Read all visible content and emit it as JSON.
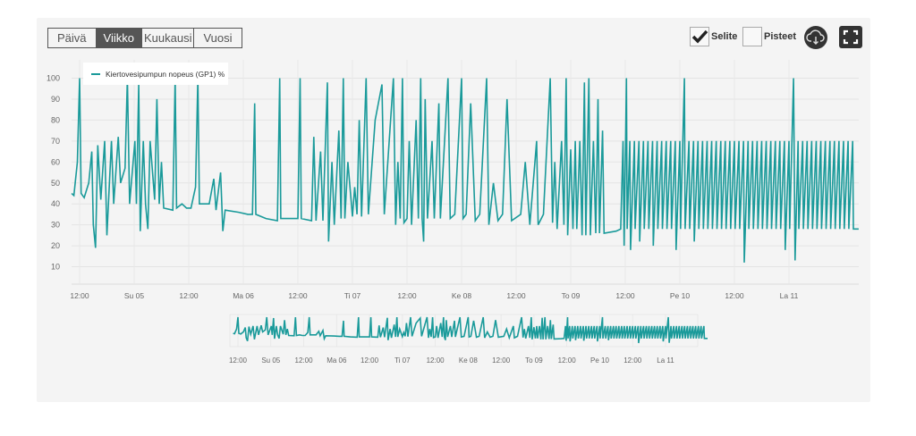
{
  "toolbar": {
    "ranges": [
      "Päivä",
      "Viikko",
      "Kuukausi",
      "Vuosi"
    ],
    "active_range": "Viikko",
    "legend_toggle": {
      "label": "Selite",
      "checked": true
    },
    "points_toggle": {
      "label": "Pisteet",
      "checked": false
    },
    "download_icon": "cloud-download-icon",
    "fullscreen_icon": "fullscreen-icon"
  },
  "chart_data": {
    "type": "line",
    "title": "",
    "xlabel": "",
    "ylabel": "",
    "ylim": [
      0,
      105
    ],
    "y_ticks": [
      10,
      20,
      30,
      40,
      50,
      60,
      70,
      80,
      90,
      100
    ],
    "x_ticks": [
      "12:00",
      "Su 05",
      "12:00",
      "Ma 06",
      "12:00",
      "Ti 07",
      "12:00",
      "Ke 08",
      "12:00",
      "To 09",
      "12:00",
      "Pe 10",
      "12:00",
      "La 11"
    ],
    "x_tick_times": [
      "04 12:00",
      "05 00:00",
      "05 12:00",
      "06 00:00",
      "06 12:00",
      "07 00:00",
      "07 12:00",
      "08 00:00",
      "08 12:00",
      "09 00:00",
      "09 12:00",
      "10 00:00",
      "10 12:00",
      "11 00:00"
    ],
    "grid": true,
    "legend_position": "top-left",
    "color": "#1a9a9a",
    "series": [
      {
        "name": "Kiertovesipumpun nopeus (GP1) %",
        "points": [
          [
            "04 10:15",
            45
          ],
          [
            "04 10:45",
            44
          ],
          [
            "04 11:30",
            60
          ],
          [
            "04 12:00",
            100
          ],
          [
            "04 12:20",
            45
          ],
          [
            "04 13:00",
            43
          ],
          [
            "04 14:00",
            50
          ],
          [
            "04 14:40",
            65
          ],
          [
            "04 15:00",
            30
          ],
          [
            "04 15:30",
            19
          ],
          [
            "04 16:00",
            68
          ],
          [
            "04 16:40",
            42
          ],
          [
            "04 17:30",
            70
          ],
          [
            "04 18:00",
            25
          ],
          [
            "04 19:00",
            70
          ],
          [
            "04 19:30",
            40
          ],
          [
            "04 20:30",
            72
          ],
          [
            "04 21:00",
            50
          ],
          [
            "04 22:00",
            57
          ],
          [
            "04 22:30",
            100
          ],
          [
            "04 23:00",
            40
          ],
          [
            "05 00:10",
            70
          ],
          [
            "05 00:30",
            40
          ],
          [
            "05 01:00",
            97
          ],
          [
            "05 01:20",
            27
          ],
          [
            "05 02:00",
            70
          ],
          [
            "05 02:30",
            40
          ],
          [
            "05 03:00",
            28
          ],
          [
            "05 03:30",
            70
          ],
          [
            "05 04:30",
            42
          ],
          [
            "05 05:00",
            90
          ],
          [
            "05 05:30",
            40
          ],
          [
            "05 06:00",
            60
          ],
          [
            "05 06:30",
            38
          ],
          [
            "05 08:30",
            37
          ],
          [
            "05 09:00",
            100
          ],
          [
            "05 09:20",
            38
          ],
          [
            "05 10:30",
            40
          ],
          [
            "05 11:30",
            38
          ],
          [
            "05 12:30",
            38
          ],
          [
            "05 13:30",
            48
          ],
          [
            "05 14:00",
            100
          ],
          [
            "05 14:20",
            40
          ],
          [
            "05 16:30",
            40
          ],
          [
            "05 17:30",
            52
          ],
          [
            "05 18:00",
            37
          ],
          [
            "05 19:00",
            55
          ],
          [
            "05 19:30",
            27
          ],
          [
            "05 20:00",
            37
          ],
          [
            "05 23:00",
            36
          ],
          [
            "06 01:00",
            35
          ],
          [
            "06 02:00",
            35
          ],
          [
            "06 02:30",
            88
          ],
          [
            "06 02:45",
            35
          ],
          [
            "06 05:00",
            33
          ],
          [
            "06 07:30",
            32
          ],
          [
            "06 08:00",
            100
          ],
          [
            "06 08:15",
            33
          ],
          [
            "06 12:00",
            33
          ],
          [
            "06 12:30",
            100
          ],
          [
            "06 12:45",
            33
          ],
          [
            "06 15:00",
            32
          ],
          [
            "06 15:30",
            72
          ],
          [
            "06 16:00",
            32
          ],
          [
            "06 17:00",
            65
          ],
          [
            "06 17:30",
            32
          ],
          [
            "06 18:30",
            98
          ],
          [
            "06 18:45",
            22
          ],
          [
            "06 19:30",
            60
          ],
          [
            "06 20:00",
            30
          ],
          [
            "06 21:00",
            75
          ],
          [
            "06 21:30",
            33
          ],
          [
            "06 22:00",
            100
          ],
          [
            "06 22:20",
            33
          ],
          [
            "06 23:00",
            60
          ],
          [
            "07 00:00",
            34
          ],
          [
            "07 00:30",
            48
          ],
          [
            "07 01:00",
            35
          ],
          [
            "07 01:30",
            80
          ],
          [
            "07 02:00",
            34
          ],
          [
            "07 03:00",
            100
          ],
          [
            "07 03:30",
            35
          ],
          [
            "07 05:00",
            80
          ],
          [
            "07 06:30",
            97
          ],
          [
            "07 07:00",
            35
          ],
          [
            "07 09:00",
            100
          ],
          [
            "07 09:30",
            30
          ],
          [
            "07 10:00",
            60
          ],
          [
            "07 10:30",
            33
          ],
          [
            "07 11:00",
            100
          ],
          [
            "07 11:20",
            31
          ],
          [
            "07 12:00",
            33
          ],
          [
            "07 12:30",
            70
          ],
          [
            "07 13:00",
            30
          ],
          [
            "07 14:00",
            80
          ],
          [
            "07 14:30",
            33
          ],
          [
            "07 15:00",
            100
          ],
          [
            "07 15:20",
            33
          ],
          [
            "07 15:40",
            22
          ],
          [
            "07 16:00",
            90
          ],
          [
            "07 16:30",
            33
          ],
          [
            "07 17:30",
            70
          ],
          [
            "07 18:00",
            33
          ],
          [
            "07 19:00",
            88
          ],
          [
            "07 19:20",
            33
          ],
          [
            "07 21:00",
            100
          ],
          [
            "07 21:30",
            33
          ],
          [
            "07 22:30",
            35
          ],
          [
            "08 00:00",
            100
          ],
          [
            "08 00:20",
            33
          ],
          [
            "08 01:00",
            35
          ],
          [
            "08 02:00",
            88
          ],
          [
            "08 03:00",
            32
          ],
          [
            "08 04:00",
            35
          ],
          [
            "08 05:30",
            100
          ],
          [
            "08 06:00",
            30
          ],
          [
            "08 07:00",
            50
          ],
          [
            "08 08:00",
            32
          ],
          [
            "08 09:00",
            35
          ],
          [
            "08 10:00",
            90
          ],
          [
            "08 11:00",
            32
          ],
          [
            "08 13:00",
            35
          ],
          [
            "08 14:00",
            60
          ],
          [
            "08 15:00",
            30
          ],
          [
            "08 16:30",
            70
          ],
          [
            "08 16:50",
            30
          ],
          [
            "08 18:00",
            35
          ],
          [
            "08 19:30",
            100
          ],
          [
            "08 20:00",
            31
          ],
          [
            "08 20:30",
            60
          ],
          [
            "08 21:00",
            28
          ],
          [
            "08 22:00",
            70
          ],
          [
            "08 22:30",
            30
          ],
          [
            "08 23:00",
            100
          ],
          [
            "08 23:20",
            25
          ],
          [
            "09 00:00",
            66
          ],
          [
            "09 00:30",
            28
          ],
          [
            "09 01:00",
            70
          ],
          [
            "09 01:20",
            28
          ],
          [
            "09 02:00",
            70
          ],
          [
            "09 02:30",
            25
          ],
          [
            "09 03:00",
            98
          ],
          [
            "09 03:20",
            25
          ],
          [
            "09 04:00",
            100
          ],
          [
            "09 04:20",
            25
          ],
          [
            "09 05:00",
            70
          ],
          [
            "09 05:30",
            26
          ],
          [
            "09 06:00",
            90
          ],
          [
            "09 06:20",
            26
          ],
          [
            "09 07:00",
            75
          ],
          [
            "09 07:20",
            26
          ],
          [
            "09 10:00",
            27
          ],
          [
            "09 11:00",
            28
          ],
          [
            "09 11:30",
            70
          ],
          [
            "09 11:45",
            20
          ],
          [
            "09 12:15",
            100
          ],
          [
            "09 12:25",
            28
          ],
          [
            "09 13:00",
            70
          ],
          [
            "09 13:10",
            18
          ],
          [
            "09 14:00",
            70
          ],
          [
            "09 14:10",
            28
          ],
          [
            "09 15:00",
            70
          ],
          [
            "09 15:10",
            22
          ],
          [
            "09 16:00",
            70
          ],
          [
            "09 16:10",
            28
          ],
          [
            "09 17:00",
            70
          ],
          [
            "09 17:10",
            28
          ],
          [
            "09 18:00",
            70
          ],
          [
            "09 18:10",
            20
          ],
          [
            "09 19:00",
            70
          ],
          [
            "09 19:10",
            28
          ],
          [
            "09 20:00",
            70
          ],
          [
            "09 20:10",
            28
          ],
          [
            "09 21:00",
            70
          ],
          [
            "09 21:10",
            28
          ],
          [
            "09 22:00",
            70
          ],
          [
            "09 22:10",
            28
          ],
          [
            "09 23:00",
            70
          ],
          [
            "09 23:10",
            18
          ],
          [
            "10 00:00",
            70
          ],
          [
            "10 00:10",
            28
          ],
          [
            "10 01:00",
            100
          ],
          [
            "10 01:10",
            28
          ],
          [
            "10 02:00",
            70
          ],
          [
            "10 02:10",
            28
          ],
          [
            "10 03:00",
            70
          ],
          [
            "10 03:10",
            22
          ],
          [
            "10 04:00",
            70
          ],
          [
            "10 04:10",
            28
          ],
          [
            "10 05:00",
            70
          ],
          [
            "10 05:10",
            28
          ],
          [
            "10 06:00",
            70
          ],
          [
            "10 06:10",
            28
          ],
          [
            "10 07:00",
            70
          ],
          [
            "10 07:10",
            28
          ],
          [
            "10 08:00",
            70
          ],
          [
            "10 08:10",
            28
          ],
          [
            "10 09:00",
            70
          ],
          [
            "10 09:10",
            28
          ],
          [
            "10 10:00",
            70
          ],
          [
            "10 10:10",
            28
          ],
          [
            "10 11:00",
            70
          ],
          [
            "10 11:10",
            28
          ],
          [
            "10 12:00",
            70
          ],
          [
            "10 12:10",
            28
          ],
          [
            "10 13:00",
            70
          ],
          [
            "10 13:10",
            28
          ],
          [
            "10 14:00",
            70
          ],
          [
            "10 14:10",
            12
          ],
          [
            "10 15:00",
            70
          ],
          [
            "10 15:10",
            28
          ],
          [
            "10 16:00",
            70
          ],
          [
            "10 16:10",
            28
          ],
          [
            "10 17:00",
            70
          ],
          [
            "10 17:10",
            28
          ],
          [
            "10 18:00",
            70
          ],
          [
            "10 18:10",
            28
          ],
          [
            "10 19:00",
            70
          ],
          [
            "10 19:10",
            28
          ],
          [
            "10 20:00",
            70
          ],
          [
            "10 20:10",
            28
          ],
          [
            "10 21:00",
            70
          ],
          [
            "10 21:10",
            28
          ],
          [
            "10 22:00",
            70
          ],
          [
            "10 22:10",
            28
          ],
          [
            "10 23:00",
            70
          ],
          [
            "10 23:10",
            18
          ],
          [
            "11 00:00",
            70
          ],
          [
            "11 00:10",
            28
          ],
          [
            "11 01:00",
            100
          ],
          [
            "11 01:20",
            13
          ],
          [
            "11 02:00",
            70
          ],
          [
            "11 02:10",
            28
          ],
          [
            "11 03:00",
            70
          ],
          [
            "11 03:10",
            28
          ],
          [
            "11 04:00",
            70
          ],
          [
            "11 04:10",
            28
          ],
          [
            "11 05:00",
            70
          ],
          [
            "11 05:10",
            28
          ],
          [
            "11 06:00",
            70
          ],
          [
            "11 06:10",
            28
          ],
          [
            "11 07:00",
            70
          ],
          [
            "11 07:10",
            28
          ],
          [
            "11 08:00",
            70
          ],
          [
            "11 08:10",
            28
          ],
          [
            "11 09:00",
            70
          ],
          [
            "11 09:10",
            28
          ],
          [
            "11 10:00",
            70
          ],
          [
            "11 10:10",
            28
          ],
          [
            "11 11:00",
            70
          ],
          [
            "11 11:10",
            28
          ],
          [
            "11 12:00",
            70
          ],
          [
            "11 12:10",
            28
          ],
          [
            "11 13:00",
            70
          ],
          [
            "11 13:10",
            28
          ],
          [
            "11 14:00",
            70
          ],
          [
            "11 14:10",
            28
          ],
          [
            "11 15:20",
            28
          ]
        ]
      }
    ]
  }
}
